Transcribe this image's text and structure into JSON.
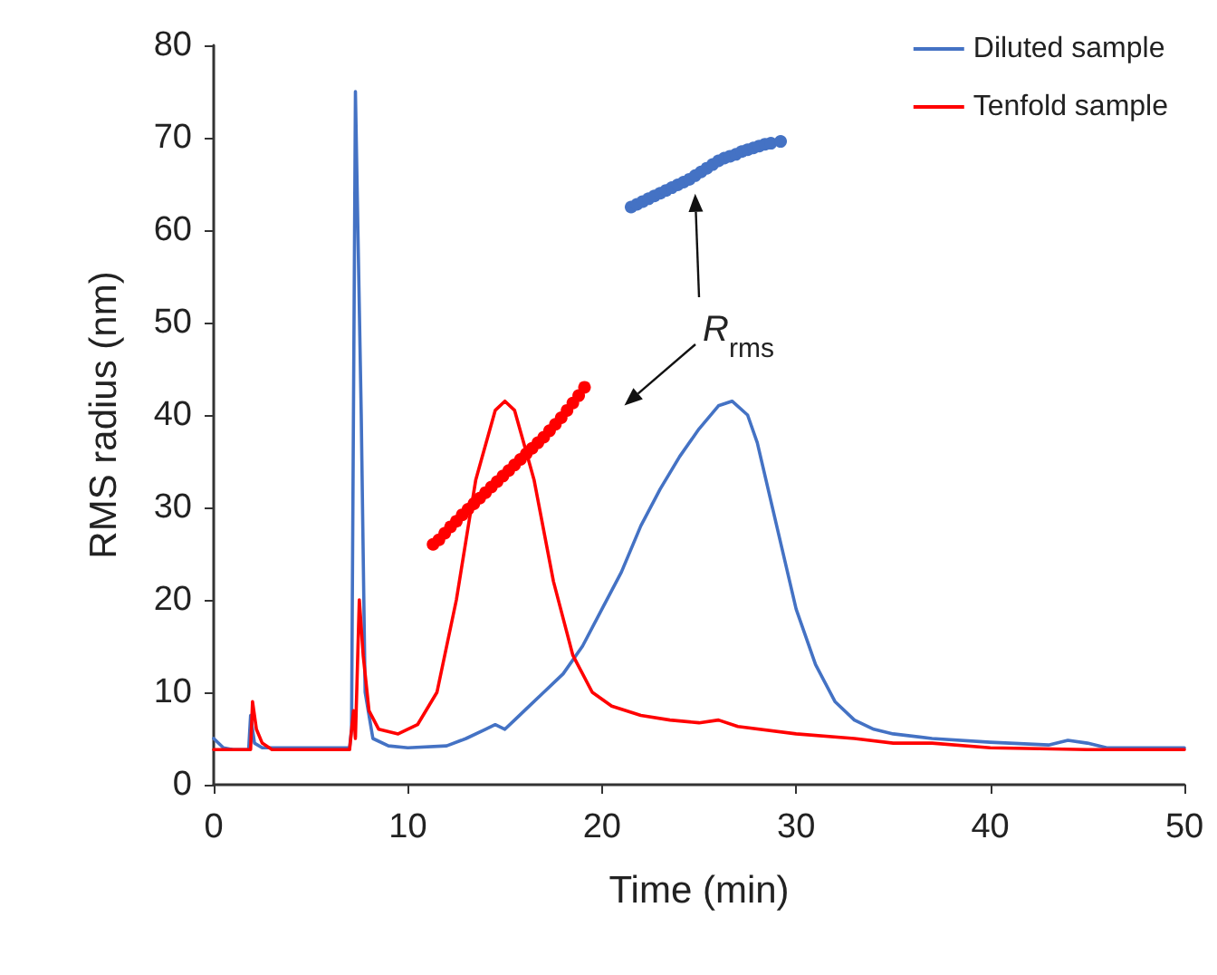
{
  "chart_data": {
    "type": "line",
    "xlabel": "Time (min)",
    "ylabel": "RMS radius (nm)",
    "xlim": [
      0,
      50
    ],
    "xticks": [
      0,
      10,
      20,
      30,
      40,
      50
    ],
    "ylim": [
      0,
      80
    ],
    "yticks": [
      0,
      10,
      20,
      30,
      40,
      50,
      60,
      70,
      80
    ],
    "grid": false,
    "legend": "top right",
    "marker": "none",
    "line_style": "solid",
    "annotations": [
      "R$_{rms}$"
    ],
    "series": [
      {
        "name": "Diluted sample",
        "color": "#4472c4",
        "x": [
          0,
          0.5,
          1,
          1.8,
          1.9,
          2.1,
          2.5,
          7,
          7.1,
          7.3,
          7.6,
          7.8,
          8.2,
          9,
          10,
          12,
          13,
          14,
          14.5,
          15,
          15.5,
          16,
          17,
          18,
          19,
          20,
          21,
          22,
          23,
          24,
          25,
          26,
          26.7,
          27.5,
          28,
          29,
          30,
          31,
          32,
          33,
          34,
          35,
          37,
          40,
          43,
          44,
          45,
          46,
          50
        ],
        "values": [
          5,
          4,
          3.8,
          3.8,
          7.5,
          4.5,
          4,
          4,
          6,
          75,
          40,
          10,
          5,
          4.2,
          4,
          4.2,
          5,
          6,
          6.5,
          6,
          7,
          8,
          10,
          12,
          15,
          19,
          23,
          28,
          32,
          35.5,
          38.5,
          41,
          41.5,
          40,
          37,
          28,
          19,
          13,
          9,
          7,
          6,
          5.5,
          5,
          4.6,
          4.3,
          4.8,
          4.5,
          4,
          4
        ]
      },
      {
        "name": "Tenfold sample",
        "color": "#ff0000",
        "x": [
          0,
          1.9,
          2,
          2.2,
          2.5,
          3,
          7,
          7.2,
          7.3,
          7.5,
          7.7,
          8,
          8.5,
          9.5,
          10.5,
          11.5,
          12.5,
          13.5,
          14.5,
          15,
          15.5,
          16.5,
          17.5,
          18.5,
          19.5,
          20.5,
          22,
          23.5,
          25,
          26,
          27,
          30,
          33,
          35,
          37,
          40,
          45,
          50
        ],
        "values": [
          3.8,
          3.8,
          9,
          6,
          4.5,
          3.8,
          3.8,
          8,
          5,
          20,
          14,
          8,
          6,
          5.5,
          6.5,
          10,
          20,
          33,
          40.5,
          41.5,
          40.5,
          33,
          22,
          14,
          10,
          8.5,
          7.5,
          7,
          6.7,
          7,
          6.3,
          5.5,
          5,
          4.5,
          4.5,
          4,
          3.8,
          3.8
        ]
      },
      {
        "type": "scatter",
        "color": "#4472c4",
        "marker": "circle",
        "x": [
          21.5,
          21.8,
          22.1,
          22.4,
          22.7,
          23,
          23.3,
          23.6,
          23.9,
          24.2,
          24.5,
          24.8,
          25.1,
          25.4,
          25.7,
          26,
          26.3,
          26.6,
          26.9,
          27.2,
          27.5,
          27.8,
          28.1,
          28.4,
          28.7,
          29.2
        ],
        "values": [
          62.5,
          62.8,
          63.1,
          63.4,
          63.7,
          64,
          64.3,
          64.6,
          64.9,
          65.2,
          65.5,
          65.9,
          66.3,
          66.7,
          67.1,
          67.5,
          67.8,
          68,
          68.2,
          68.5,
          68.7,
          68.9,
          69.1,
          69.3,
          69.4,
          69.6
        ]
      },
      {
        "type": "scatter",
        "color": "#ff0000",
        "marker": "circle",
        "x": [
          11.3,
          11.6,
          11.9,
          12.2,
          12.5,
          12.8,
          13.1,
          13.4,
          13.7,
          14,
          14.3,
          14.6,
          14.9,
          15.2,
          15.5,
          15.8,
          16.1,
          16.4,
          16.7,
          17,
          17.3,
          17.6,
          17.9,
          18.2,
          18.5,
          18.8,
          19.1
        ],
        "values": [
          26,
          26.5,
          27.2,
          27.9,
          28.5,
          29.2,
          29.8,
          30.4,
          31,
          31.6,
          32.2,
          32.8,
          33.4,
          34,
          34.6,
          35.2,
          35.8,
          36.4,
          37,
          37.6,
          38.3,
          39,
          39.7,
          40.5,
          41.3,
          42.1,
          43
        ]
      }
    ]
  }
}
